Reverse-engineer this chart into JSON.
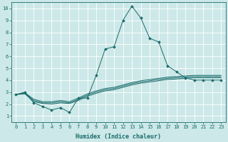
{
  "background_color": "#cde8e8",
  "grid_color": "#ffffff",
  "line_color": "#1a6b6b",
  "xlabel": "Humidex (Indice chaleur)",
  "xlim": [
    -0.5,
    23.5
  ],
  "ylim": [
    0.5,
    10.5
  ],
  "xticks": [
    0,
    1,
    2,
    3,
    4,
    5,
    6,
    7,
    8,
    9,
    10,
    11,
    12,
    13,
    14,
    15,
    16,
    17,
    18,
    19,
    20,
    21,
    22,
    23
  ],
  "yticks": [
    1,
    2,
    3,
    4,
    5,
    6,
    7,
    8,
    9,
    10
  ],
  "series": [
    {
      "x": [
        0,
        1,
        2,
        3,
        4,
        5,
        6,
        7,
        8,
        9,
        10,
        11,
        12,
        13,
        14,
        15,
        16,
        17,
        18,
        19,
        20,
        21,
        22,
        23
      ],
      "y": [
        2.8,
        3.0,
        2.1,
        1.8,
        1.5,
        1.7,
        1.3,
        2.5,
        2.5,
        4.4,
        6.6,
        6.8,
        9.0,
        10.2,
        9.2,
        7.5,
        7.2,
        5.2,
        4.7,
        4.2,
        4.0,
        4.0,
        4.0,
        4.0
      ],
      "marker": true
    },
    {
      "x": [
        0,
        1,
        2,
        3,
        4,
        5,
        6,
        7,
        8,
        9,
        10,
        11,
        12,
        13,
        14,
        15,
        16,
        17,
        18,
        19,
        20,
        21,
        22,
        23
      ],
      "y": [
        2.8,
        2.85,
        2.2,
        2.05,
        2.0,
        2.1,
        2.05,
        2.3,
        2.65,
        2.9,
        3.1,
        3.2,
        3.4,
        3.6,
        3.75,
        3.85,
        3.95,
        4.05,
        4.1,
        4.15,
        4.2,
        4.2,
        4.2,
        4.2
      ],
      "marker": false
    },
    {
      "x": [
        0,
        1,
        2,
        3,
        4,
        5,
        6,
        7,
        8,
        9,
        10,
        11,
        12,
        13,
        14,
        15,
        16,
        17,
        18,
        19,
        20,
        21,
        22,
        23
      ],
      "y": [
        2.8,
        2.9,
        2.3,
        2.1,
        2.1,
        2.2,
        2.1,
        2.4,
        2.75,
        3.0,
        3.2,
        3.3,
        3.5,
        3.7,
        3.85,
        3.95,
        4.05,
        4.15,
        4.2,
        4.25,
        4.3,
        4.3,
        4.3,
        4.3
      ],
      "marker": false
    },
    {
      "x": [
        0,
        1,
        2,
        3,
        4,
        5,
        6,
        7,
        8,
        9,
        10,
        11,
        12,
        13,
        14,
        15,
        16,
        17,
        18,
        19,
        20,
        21,
        22,
        23
      ],
      "y": [
        2.8,
        2.95,
        2.4,
        2.2,
        2.2,
        2.3,
        2.2,
        2.5,
        2.85,
        3.1,
        3.3,
        3.4,
        3.6,
        3.8,
        3.95,
        4.05,
        4.15,
        4.25,
        4.3,
        4.35,
        4.4,
        4.4,
        4.4,
        4.4
      ],
      "marker": false
    }
  ],
  "tick_fontsize": 5.0,
  "xlabel_fontsize": 6.0,
  "linewidth": 0.7,
  "marker_size": 2.0
}
